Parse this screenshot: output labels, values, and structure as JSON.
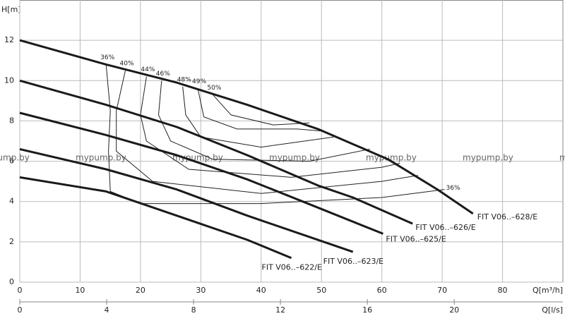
{
  "chart_data": {
    "type": "line",
    "y_label": "H[m]",
    "x_label": "Q[m³/h]",
    "x2_label": "Q[l/s]",
    "xlim": [
      0,
      90
    ],
    "xticks": [
      0,
      10,
      20,
      30,
      40,
      50,
      60,
      70,
      80
    ],
    "ylim": [
      0,
      14
    ],
    "yticks": [
      0,
      2,
      4,
      6,
      8,
      10,
      12
    ],
    "x2lim": [
      0,
      25
    ],
    "x2ticks": [
      0,
      4,
      8,
      12,
      16,
      20
    ],
    "grid": true,
    "color": "#1a1a1a",
    "watermark": "mypump.by",
    "series": [
      {
        "name": "FIT V06..–628/E",
        "x": [
          0,
          14.3,
          26,
          37.7,
          49.4,
          61,
          69.2,
          75.1
        ],
        "values": [
          12,
          10.8,
          9.9,
          8.8,
          7.6,
          6.1,
          4.6,
          3.4
        ]
      },
      {
        "name": "FIT V06..–626/E",
        "x": [
          0,
          14.3,
          26,
          37.7,
          49.4,
          55.2,
          65.1
        ],
        "values": [
          10,
          8.8,
          7.7,
          6.3,
          4.8,
          4.2,
          2.9
        ]
      },
      {
        "name": "FIT V06..–625/E",
        "x": [
          0,
          14.3,
          26,
          37.7,
          49.4,
          60.2
        ],
        "values": [
          8.4,
          7.3,
          6.3,
          5.1,
          3.7,
          2.4
        ]
      },
      {
        "name": "FIT V06..–623/E",
        "x": [
          0,
          14.3,
          26,
          37.7,
          55.2
        ],
        "values": [
          6.6,
          5.6,
          4.6,
          3.3,
          1.5
        ]
      },
      {
        "name": "FIT V06..–622/E",
        "x": [
          0,
          14.3,
          26,
          37.7,
          45
        ],
        "values": [
          5.2,
          4.5,
          3.3,
          2.1,
          1.2
        ]
      }
    ],
    "efficiency_lines": [
      {
        "label": "36%",
        "x": [
          14.3,
          15,
          14.7,
          15,
          20,
          40,
          60,
          70.4
        ],
        "values": [
          10.8,
          8.5,
          6.5,
          4.5,
          3.9,
          3.9,
          4.2,
          4.6
        ]
      },
      {
        "label": "40%",
        "x": [
          17.5,
          16,
          16,
          22,
          40,
          60,
          66
        ],
        "values": [
          10.5,
          8.5,
          6.5,
          5,
          4.4,
          5,
          5.3
        ]
      },
      {
        "label": "44%",
        "x": [
          21,
          20,
          21,
          28,
          45,
          60,
          63
        ],
        "values": [
          10.2,
          8.3,
          7,
          5.6,
          5.2,
          5.7,
          5.9
        ]
      },
      {
        "label": "46%",
        "x": [
          23.5,
          23,
          25,
          32,
          48,
          58
        ],
        "values": [
          10,
          8.3,
          7,
          6.1,
          6,
          6.6
        ]
      },
      {
        "label": "48%",
        "x": [
          27,
          27.5,
          30,
          40,
          52
        ],
        "values": [
          9.7,
          8.3,
          7.2,
          6.7,
          7.2
        ]
      },
      {
        "label": "49%",
        "x": [
          29.5,
          30.5,
          36,
          46,
          50
        ],
        "values": [
          9.6,
          8.2,
          7.6,
          7.6,
          7.5
        ]
      },
      {
        "label": "50%",
        "x": [
          32,
          35,
          42,
          48
        ],
        "values": [
          9.3,
          8.3,
          7.8,
          7.9
        ]
      }
    ],
    "efficiency_end_label": "36%"
  }
}
